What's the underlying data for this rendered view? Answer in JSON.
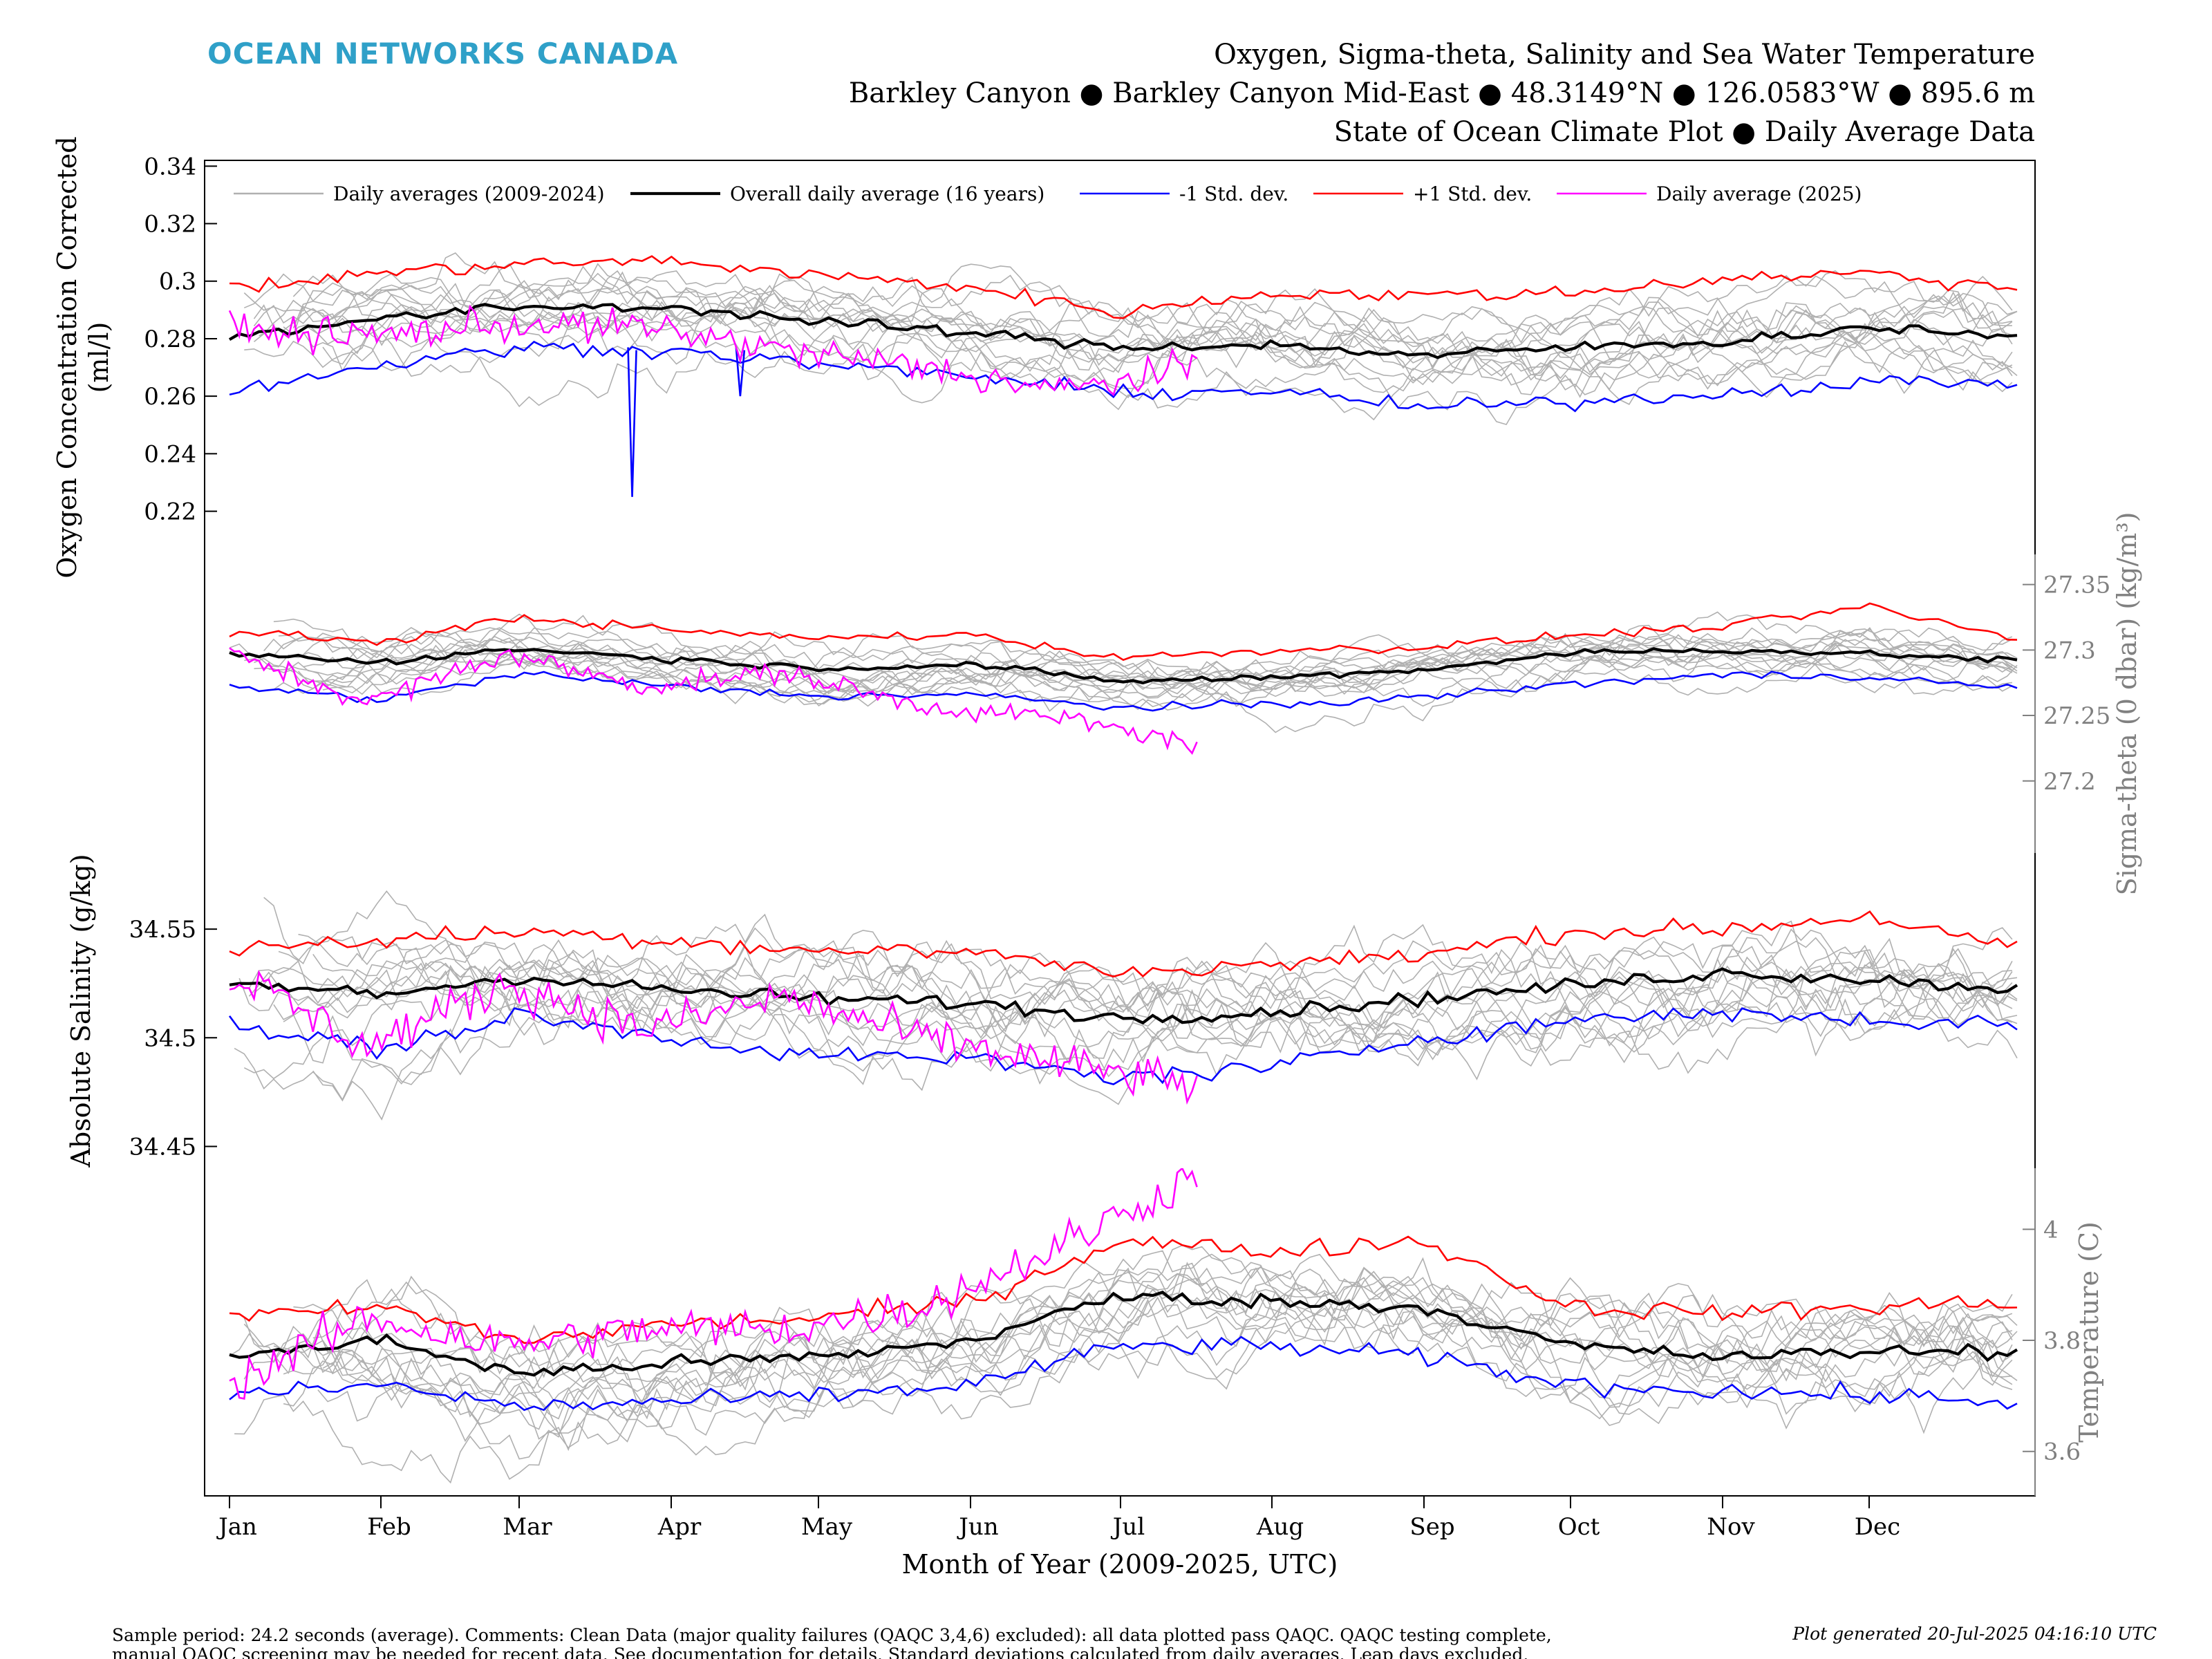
{
  "header": {
    "brand": "OCEAN NETWORKS CANADA",
    "brand_color": "#2fa0c8",
    "title_lines": [
      "Oxygen, Sigma-theta, Salinity and Sea Water Temperature",
      "Barkley Canyon ● Barkley Canyon Mid-East ● 48.3149°N ● 126.0583°W ● 895.6 m",
      "State of Ocean Climate Plot ● Daily Average Data"
    ]
  },
  "footer": {
    "note_lines": [
      "Sample period: 24.2 seconds (average). Comments: Clean Data (major quality failures (QAQC 3,4,6) excluded): all data plotted pass QAQC. QAQC testing complete,",
      "manual QAQC screening may be needed for recent data. See documentation for details. Standard deviations calculated from daily averages. Leap days excluded."
    ],
    "generated": "Plot generated 20-Jul-2025 04:16:10 UTC"
  },
  "chart_data": {
    "type": "line",
    "xlabel": "Month of Year (2009-2025, UTC)",
    "x_ticks": [
      "Jan",
      "Feb",
      "Mar",
      "Apr",
      "May",
      "Jun",
      "Jul",
      "Aug",
      "Sep",
      "Oct",
      "Nov",
      "Dec"
    ],
    "xlim": [
      "Jan 1",
      "Dec 31"
    ],
    "grid": false,
    "legend": {
      "placement": "top",
      "entries": [
        {
          "label": "Daily averages (2009-2024)",
          "color": "#b0b0b0"
        },
        {
          "label": "Overall daily average (16 years)",
          "color": "#000000"
        },
        {
          "label": "-1 Std. dev.",
          "color": "#0000ff"
        },
        {
          "label": "+1 Std. dev.",
          "color": "#ff0000"
        },
        {
          "label": "Daily average (2025)",
          "color": "#ff00ff"
        }
      ]
    },
    "series_colors": {
      "history": "#b0b0b0",
      "mean": "#000000",
      "minus_std": "#0000ff",
      "plus_std": "#ff0000",
      "current": "#ff00ff"
    },
    "x_months": [
      "Jan 1",
      "Feb 1",
      "Mar 1",
      "Apr 1",
      "May 1",
      "Jun 1",
      "Jul 1",
      "Aug 1",
      "Sep 1",
      "Oct 1",
      "Nov 1",
      "Dec 1",
      "Dec 31"
    ],
    "panels": [
      {
        "id": "oxygen",
        "ylabel": [
          "Oxygen Concentration Corrected",
          "(ml/l)"
        ],
        "axis_side": "left",
        "ylim": [
          0.205,
          0.342
        ],
        "ticks": [
          "0.22",
          "0.24",
          "0.26",
          "0.28",
          "0.3",
          "0.32",
          "0.34"
        ],
        "mean": [
          0.281,
          0.287,
          0.291,
          0.291,
          0.286,
          0.282,
          0.277,
          0.278,
          0.274,
          0.277,
          0.279,
          0.284,
          0.281
        ],
        "plus_std": [
          0.297,
          0.303,
          0.306,
          0.307,
          0.302,
          0.298,
          0.289,
          0.296,
          0.295,
          0.296,
          0.301,
          0.303,
          0.297
        ],
        "minus_std": [
          0.262,
          0.271,
          0.277,
          0.276,
          0.271,
          0.267,
          0.261,
          0.262,
          0.256,
          0.258,
          0.261,
          0.265,
          0.265
        ],
        "current": [
          0.283,
          0.281,
          0.285,
          0.284,
          0.276,
          0.27,
          0.262,
          0.27
        ],
        "events": [
          {
            "x": "Mar 24",
            "low": 0.225
          },
          {
            "x": "Apr 15",
            "low": 0.26
          }
        ]
      },
      {
        "id": "sigma_theta",
        "ylabel": [
          "Sigma-theta (0 dbar) (kg/m³)"
        ],
        "axis_side": "right",
        "ylim": [
          27.145,
          27.373
        ],
        "ticks": [
          "27.2",
          "27.25",
          "27.3",
          "27.35"
        ],
        "mean": [
          27.297,
          27.291,
          27.301,
          27.293,
          27.286,
          27.289,
          27.276,
          27.279,
          27.285,
          27.298,
          27.3,
          27.297,
          27.292
        ],
        "plus_std": [
          27.314,
          27.306,
          27.325,
          27.315,
          27.309,
          27.312,
          27.294,
          27.3,
          27.302,
          27.311,
          27.318,
          27.333,
          27.308
        ],
        "minus_std": [
          27.273,
          27.262,
          27.282,
          27.272,
          27.265,
          27.266,
          27.256,
          27.258,
          27.264,
          27.274,
          27.281,
          27.28,
          27.27
        ],
        "current": [
          27.298,
          27.26,
          27.297,
          27.272,
          27.283,
          27.257,
          27.248,
          27.228
        ]
      },
      {
        "id": "salinity",
        "ylabel": [
          "Absolute Salinity (g/kg)"
        ],
        "axis_side": "left",
        "ylim": [
          34.44,
          34.585
        ],
        "ticks": [
          "34.45",
          "34.5",
          "34.55"
        ],
        "mean": [
          34.525,
          34.52,
          34.528,
          34.522,
          34.518,
          34.516,
          34.509,
          34.512,
          34.518,
          34.524,
          34.53,
          34.527,
          34.522
        ],
        "plus_std": [
          34.541,
          34.545,
          34.549,
          34.545,
          34.54,
          34.54,
          34.53,
          34.534,
          34.538,
          34.549,
          34.55,
          34.556,
          34.54
        ],
        "minus_std": [
          34.505,
          34.495,
          34.51,
          34.5,
          34.492,
          34.49,
          34.482,
          34.486,
          34.5,
          34.508,
          34.512,
          34.508,
          34.506
        ],
        "current": [
          34.53,
          34.496,
          34.525,
          34.504,
          34.519,
          34.5,
          34.488,
          34.478
        ]
      },
      {
        "id": "temperature",
        "ylabel": [
          "Temperature (C)"
        ],
        "axis_side": "right",
        "ylim": [
          3.52,
          4.11
        ],
        "ticks": [
          "3.6",
          "3.8",
          "4"
        ],
        "mean": [
          3.77,
          3.8,
          3.74,
          3.76,
          3.77,
          3.8,
          3.88,
          3.87,
          3.86,
          3.79,
          3.77,
          3.78,
          3.78
        ],
        "plus_std": [
          3.84,
          3.86,
          3.8,
          3.83,
          3.84,
          3.87,
          3.98,
          3.96,
          3.98,
          3.86,
          3.85,
          3.86,
          3.87
        ],
        "minus_std": [
          3.7,
          3.72,
          3.68,
          3.69,
          3.7,
          3.72,
          3.79,
          3.79,
          3.77,
          3.72,
          3.71,
          3.7,
          3.69
        ],
        "current": [
          3.72,
          3.84,
          3.79,
          3.82,
          3.82,
          3.86,
          3.97,
          4.1
        ]
      }
    ]
  }
}
